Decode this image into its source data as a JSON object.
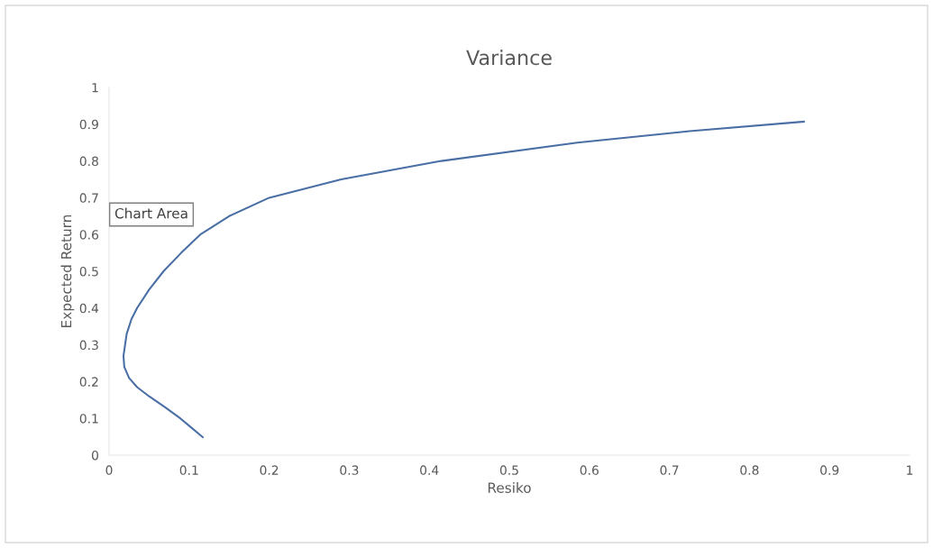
{
  "chart_data": {
    "type": "line",
    "title": "Variance",
    "xlabel": "Resiko",
    "ylabel": "Expected Return",
    "series": [
      {
        "color": "#4a6fa5",
        "x": [
          0.117,
          0.1,
          0.089,
          0.07,
          0.05,
          0.035,
          0.025,
          0.019,
          0.018,
          0.02,
          0.022,
          0.028,
          0.035,
          0.05,
          0.068,
          0.09,
          0.114,
          0.15,
          0.2,
          0.29,
          0.415,
          0.585,
          0.72,
          0.868
        ],
        "values": [
          0.049,
          0.08,
          0.1,
          0.13,
          0.16,
          0.185,
          0.21,
          0.24,
          0.27,
          0.3,
          0.33,
          0.37,
          0.4,
          0.45,
          0.5,
          0.55,
          0.6,
          0.65,
          0.7,
          0.75,
          0.8,
          0.85,
          0.88,
          0.907
        ]
      }
    ],
    "xlim": [
      0,
      1
    ],
    "ylim": [
      0,
      1
    ],
    "xticks": [
      0,
      0.1,
      0.2,
      0.3,
      0.4,
      0.5,
      0.6,
      0.7,
      0.8,
      0.9,
      1
    ],
    "yticks": [
      0,
      0.1,
      0.2,
      0.3,
      0.4,
      0.5,
      0.6,
      0.7,
      0.8,
      0.9,
      1
    ],
    "marker": "none",
    "line_style": "solid",
    "grid": false,
    "legend": false,
    "annotations": [
      "Chart Area"
    ]
  }
}
